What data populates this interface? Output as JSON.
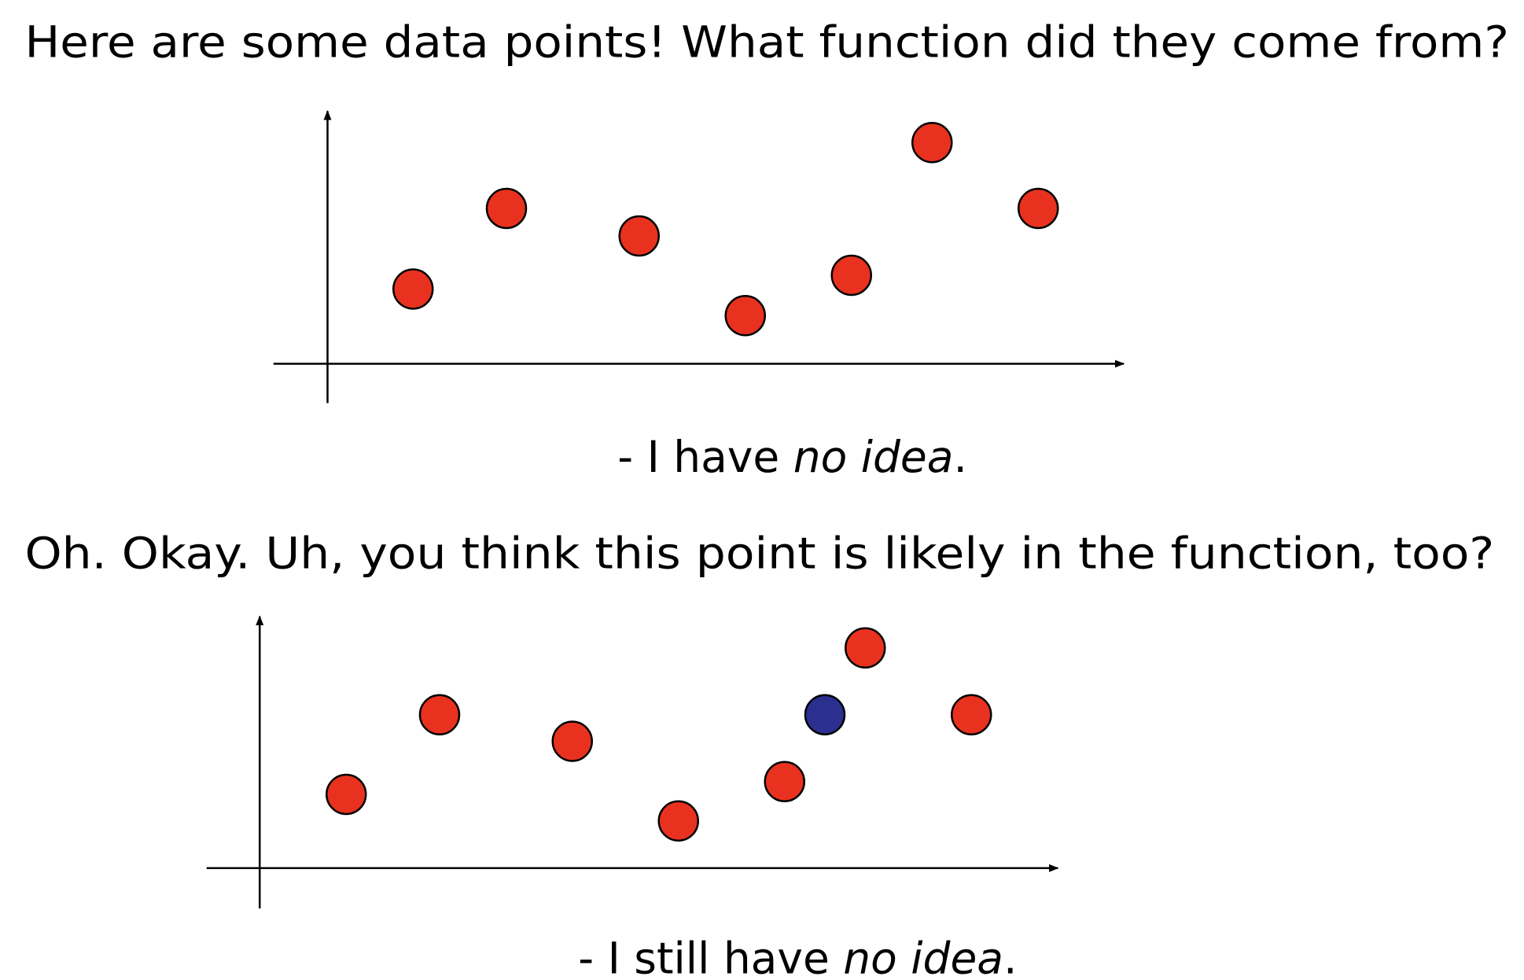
{
  "slide": {
    "question_1": "Here are some data points! What function did they come from?",
    "caption_1": {
      "prefix": "- I have ",
      "emphasis": "no idea",
      "suffix": "."
    },
    "question_2": "Oh. Okay. Uh, you think this point is likely in the function, too?",
    "caption_2": {
      "prefix": "- I still have ",
      "emphasis": "no idea",
      "suffix": "."
    }
  }
}
